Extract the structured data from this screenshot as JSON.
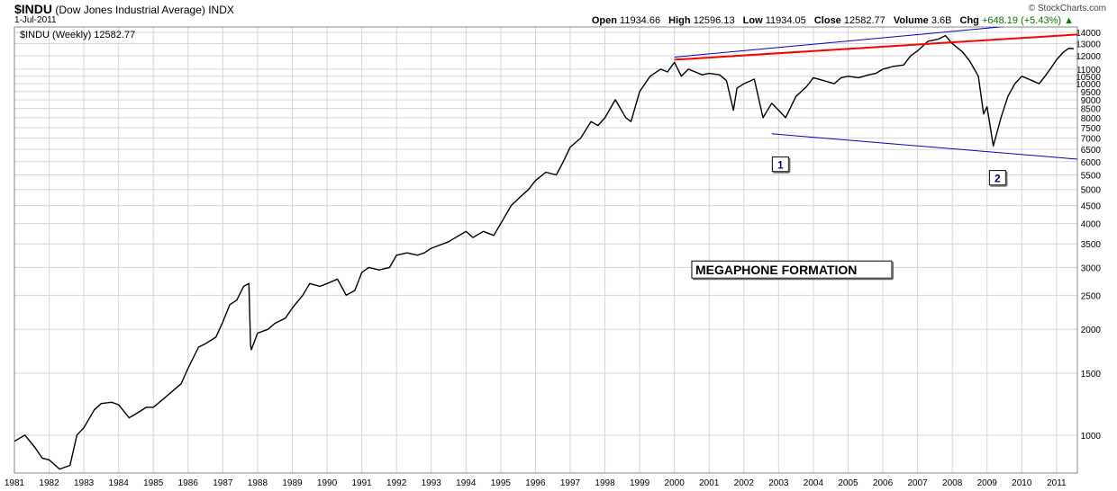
{
  "header": {
    "symbol": "$INDU",
    "name": "(Dow Jones Industrial Average) INDX",
    "date": "1-Jul-2011",
    "brand": "© StockCharts.com",
    "open_label": "Open",
    "open": "11934.66",
    "high_label": "High",
    "high": "12596.13",
    "low_label": "Low",
    "low": "11934.05",
    "close_label": "Close",
    "close": "12582.77",
    "volume_label": "Volume",
    "volume": "3.6B",
    "chg_label": "Chg",
    "chg": "+648.19 (+5.43%)",
    "chg_arrow": "▲"
  },
  "chart_data": {
    "type": "line",
    "legend": "$INDU (Weekly) 12582.77",
    "yscale": "log",
    "ylim": [
      780,
      14500
    ],
    "xlim": [
      1981.0,
      2011.6
    ],
    "x_ticks": [
      "1981",
      "1982",
      "1983",
      "1984",
      "1985",
      "1986",
      "1987",
      "1988",
      "1989",
      "1990",
      "1991",
      "1992",
      "1993",
      "1994",
      "1995",
      "1996",
      "1997",
      "1998",
      "1999",
      "2000",
      "2001",
      "2002",
      "2003",
      "2004",
      "2005",
      "2006",
      "2007",
      "2008",
      "2009",
      "2010",
      "2011"
    ],
    "y_ticks": [
      1000,
      1500,
      2000,
      2500,
      3000,
      3500,
      4000,
      4500,
      5000,
      5500,
      6000,
      6500,
      7000,
      7500,
      8000,
      8500,
      9000,
      9500,
      10000,
      10500,
      11000,
      12000,
      13000,
      14000
    ],
    "grid": true,
    "series": [
      {
        "color": "#000000",
        "x": [
          1981.0,
          1981.3,
          1981.6,
          1981.8,
          1982.0,
          1982.3,
          1982.6,
          1982.8,
          1983.0,
          1983.3,
          1983.5,
          1983.8,
          1984.0,
          1984.3,
          1984.5,
          1984.8,
          1985.0,
          1985.3,
          1985.5,
          1985.8,
          1986.0,
          1986.3,
          1986.5,
          1986.8,
          1987.0,
          1987.2,
          1987.4,
          1987.6,
          1987.75,
          1987.8,
          1987.82,
          1988.0,
          1988.3,
          1988.5,
          1988.8,
          1989.0,
          1989.3,
          1989.5,
          1989.8,
          1990.0,
          1990.3,
          1990.55,
          1990.8,
          1991.0,
          1991.2,
          1991.5,
          1991.8,
          1992.0,
          1992.3,
          1992.6,
          1992.8,
          1993.0,
          1993.5,
          1994.0,
          1994.2,
          1994.5,
          1994.8,
          1995.0,
          1995.3,
          1995.6,
          1995.8,
          1996.0,
          1996.3,
          1996.6,
          1996.8,
          1997.0,
          1997.3,
          1997.6,
          1997.8,
          1998.0,
          1998.3,
          1998.6,
          1998.75,
          1999.0,
          1999.3,
          1999.6,
          1999.8,
          2000.0,
          2000.2,
          2000.4,
          2000.6,
          2000.8,
          2001.0,
          2001.3,
          2001.5,
          2001.7,
          2001.8,
          2002.0,
          2002.3,
          2002.55,
          2002.8,
          2003.0,
          2003.2,
          2003.5,
          2003.8,
          2004.0,
          2004.3,
          2004.6,
          2004.8,
          2005.0,
          2005.3,
          2005.6,
          2005.8,
          2006.0,
          2006.3,
          2006.6,
          2006.8,
          2007.0,
          2007.3,
          2007.6,
          2007.8,
          2008.0,
          2008.3,
          2008.5,
          2008.75,
          2008.9,
          2009.0,
          2009.18,
          2009.4,
          2009.6,
          2009.8,
          2010.0,
          2010.3,
          2010.5,
          2010.7,
          2010.9,
          2011.0,
          2011.2,
          2011.35,
          2011.5
        ],
        "y": [
          960,
          1000,
          920,
          860,
          850,
          800,
          820,
          1000,
          1050,
          1180,
          1230,
          1240,
          1220,
          1120,
          1150,
          1200,
          1200,
          1270,
          1320,
          1400,
          1550,
          1780,
          1820,
          1900,
          2100,
          2350,
          2420,
          2650,
          2700,
          1800,
          1750,
          1950,
          2000,
          2080,
          2150,
          2300,
          2500,
          2700,
          2650,
          2700,
          2780,
          2500,
          2580,
          2900,
          3000,
          2950,
          3000,
          3250,
          3300,
          3250,
          3300,
          3400,
          3550,
          3800,
          3650,
          3800,
          3700,
          4000,
          4500,
          4800,
          5000,
          5300,
          5600,
          5500,
          6000,
          6600,
          7000,
          7800,
          7600,
          8000,
          9000,
          8000,
          7800,
          9500,
          10500,
          11000,
          10800,
          11500,
          10500,
          11000,
          10800,
          10600,
          10700,
          10600,
          10200,
          8400,
          9700,
          10000,
          10300,
          8000,
          8800,
          8400,
          8000,
          9200,
          9800,
          10400,
          10200,
          10000,
          10400,
          10500,
          10400,
          10600,
          10700,
          11000,
          11200,
          11300,
          12000,
          12400,
          13200,
          13400,
          13700,
          13000,
          12300,
          11600,
          10500,
          8200,
          8600,
          6650,
          8000,
          9200,
          10000,
          10500,
          10200,
          10000,
          10600,
          11300,
          11700,
          12300,
          12600,
          12580
        ]
      }
    ],
    "trendlines": [
      {
        "color": "#ff0000",
        "from": [
          2000.0,
          11700
        ],
        "to": [
          2011.6,
          13800
        ]
      },
      {
        "color": "#0000cc",
        "from": [
          2000.0,
          11900
        ],
        "to": [
          2011.6,
          15200
        ]
      },
      {
        "color": "#0000cc",
        "from": [
          2002.8,
          7200
        ],
        "to": [
          2011.6,
          6100
        ]
      }
    ],
    "annotations": [
      {
        "text": "1",
        "x": 2003.0,
        "y": 5900
      },
      {
        "text": "2",
        "x": 2009.25,
        "y": 5400
      },
      {
        "text": "MEGAPHONE FORMATION",
        "x": 2000.5,
        "y": 2950
      }
    ]
  }
}
